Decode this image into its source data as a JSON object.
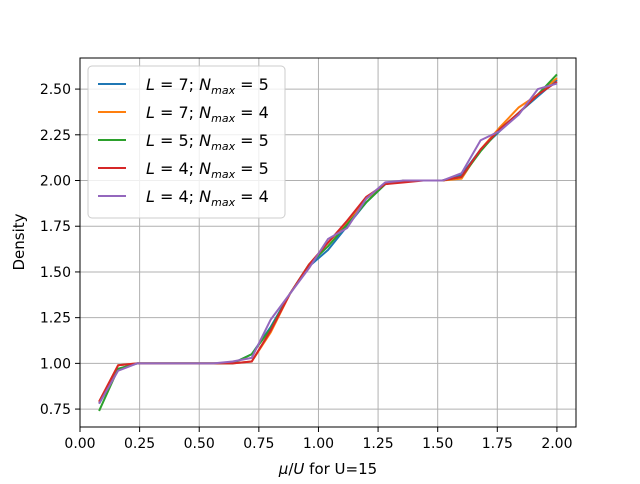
{
  "chart_data": {
    "type": "line",
    "title": "",
    "xlabel_parts": {
      "mu": "μ",
      "slash": "/",
      "U": "U",
      "rest": " for U=15"
    },
    "ylabel": "Density",
    "xlim": [
      0.0,
      2.08
    ],
    "ylim": [
      0.652,
      2.67
    ],
    "xticks": [
      0.0,
      0.25,
      0.5,
      0.75,
      1.0,
      1.25,
      1.5,
      1.75,
      2.0
    ],
    "xtick_labels": [
      "0.00",
      "0.25",
      "0.50",
      "0.75",
      "1.00",
      "1.25",
      "1.50",
      "1.75",
      "2.00"
    ],
    "yticks": [
      0.75,
      1.0,
      1.25,
      1.5,
      1.75,
      2.0,
      2.25,
      2.5
    ],
    "ytick_labels": [
      "0.75",
      "1.00",
      "1.25",
      "1.50",
      "1.75",
      "2.00",
      "2.25",
      "2.50"
    ],
    "grid": true,
    "legend_placement": "top-left",
    "x": [
      0.08,
      0.16,
      0.24,
      0.32,
      0.4,
      0.48,
      0.56,
      0.64,
      0.72,
      0.8,
      0.88,
      0.96,
      1.04,
      1.12,
      1.2,
      1.28,
      1.36,
      1.44,
      1.52,
      1.6,
      1.68,
      1.76,
      1.84,
      1.92,
      2.0
    ],
    "series": [
      {
        "label": {
          "L": "7",
          "N": "5"
        },
        "color": "#1f77b4",
        "values": [
          0.78,
          0.97,
          1.0,
          1.0,
          1.0,
          1.0,
          1.0,
          1.0,
          1.05,
          1.2,
          1.38,
          1.53,
          1.62,
          1.75,
          1.88,
          1.98,
          2.0,
          2.0,
          2.0,
          2.03,
          2.17,
          2.27,
          2.37,
          2.46,
          2.55
        ]
      },
      {
        "label": {
          "L": "7",
          "N": "4"
        },
        "color": "#ff7f0e",
        "values": [
          0.79,
          0.99,
          1.0,
          1.0,
          1.0,
          1.0,
          1.0,
          1.0,
          1.01,
          1.17,
          1.38,
          1.54,
          1.66,
          1.77,
          1.9,
          1.98,
          2.0,
          2.0,
          2.0,
          2.01,
          2.17,
          2.29,
          2.4,
          2.47,
          2.56
        ]
      },
      {
        "label": {
          "L": "5",
          "N": "5"
        },
        "color": "#2ca02c",
        "values": [
          0.74,
          0.97,
          1.0,
          1.0,
          1.0,
          1.0,
          1.0,
          1.0,
          1.05,
          1.19,
          1.38,
          1.54,
          1.64,
          1.76,
          1.88,
          1.98,
          2.0,
          2.0,
          2.0,
          2.02,
          2.16,
          2.28,
          2.37,
          2.47,
          2.58
        ]
      },
      {
        "label": {
          "L": "4",
          "N": "5"
        },
        "color": "#d62728",
        "values": [
          0.79,
          0.99,
          1.0,
          1.0,
          1.0,
          1.0,
          1.0,
          1.0,
          1.01,
          1.18,
          1.38,
          1.54,
          1.66,
          1.78,
          1.91,
          1.98,
          1.99,
          2.0,
          2.0,
          2.02,
          2.17,
          2.28,
          2.37,
          2.47,
          2.54
        ]
      },
      {
        "label": {
          "L": "4",
          "N": "4"
        },
        "color": "#9467bd",
        "values": [
          0.78,
          0.96,
          1.0,
          1.0,
          1.0,
          1.0,
          1.0,
          1.01,
          1.03,
          1.24,
          1.38,
          1.52,
          1.68,
          1.74,
          1.9,
          1.99,
          2.0,
          2.0,
          2.0,
          2.04,
          2.22,
          2.27,
          2.36,
          2.5,
          2.53
        ]
      }
    ]
  }
}
